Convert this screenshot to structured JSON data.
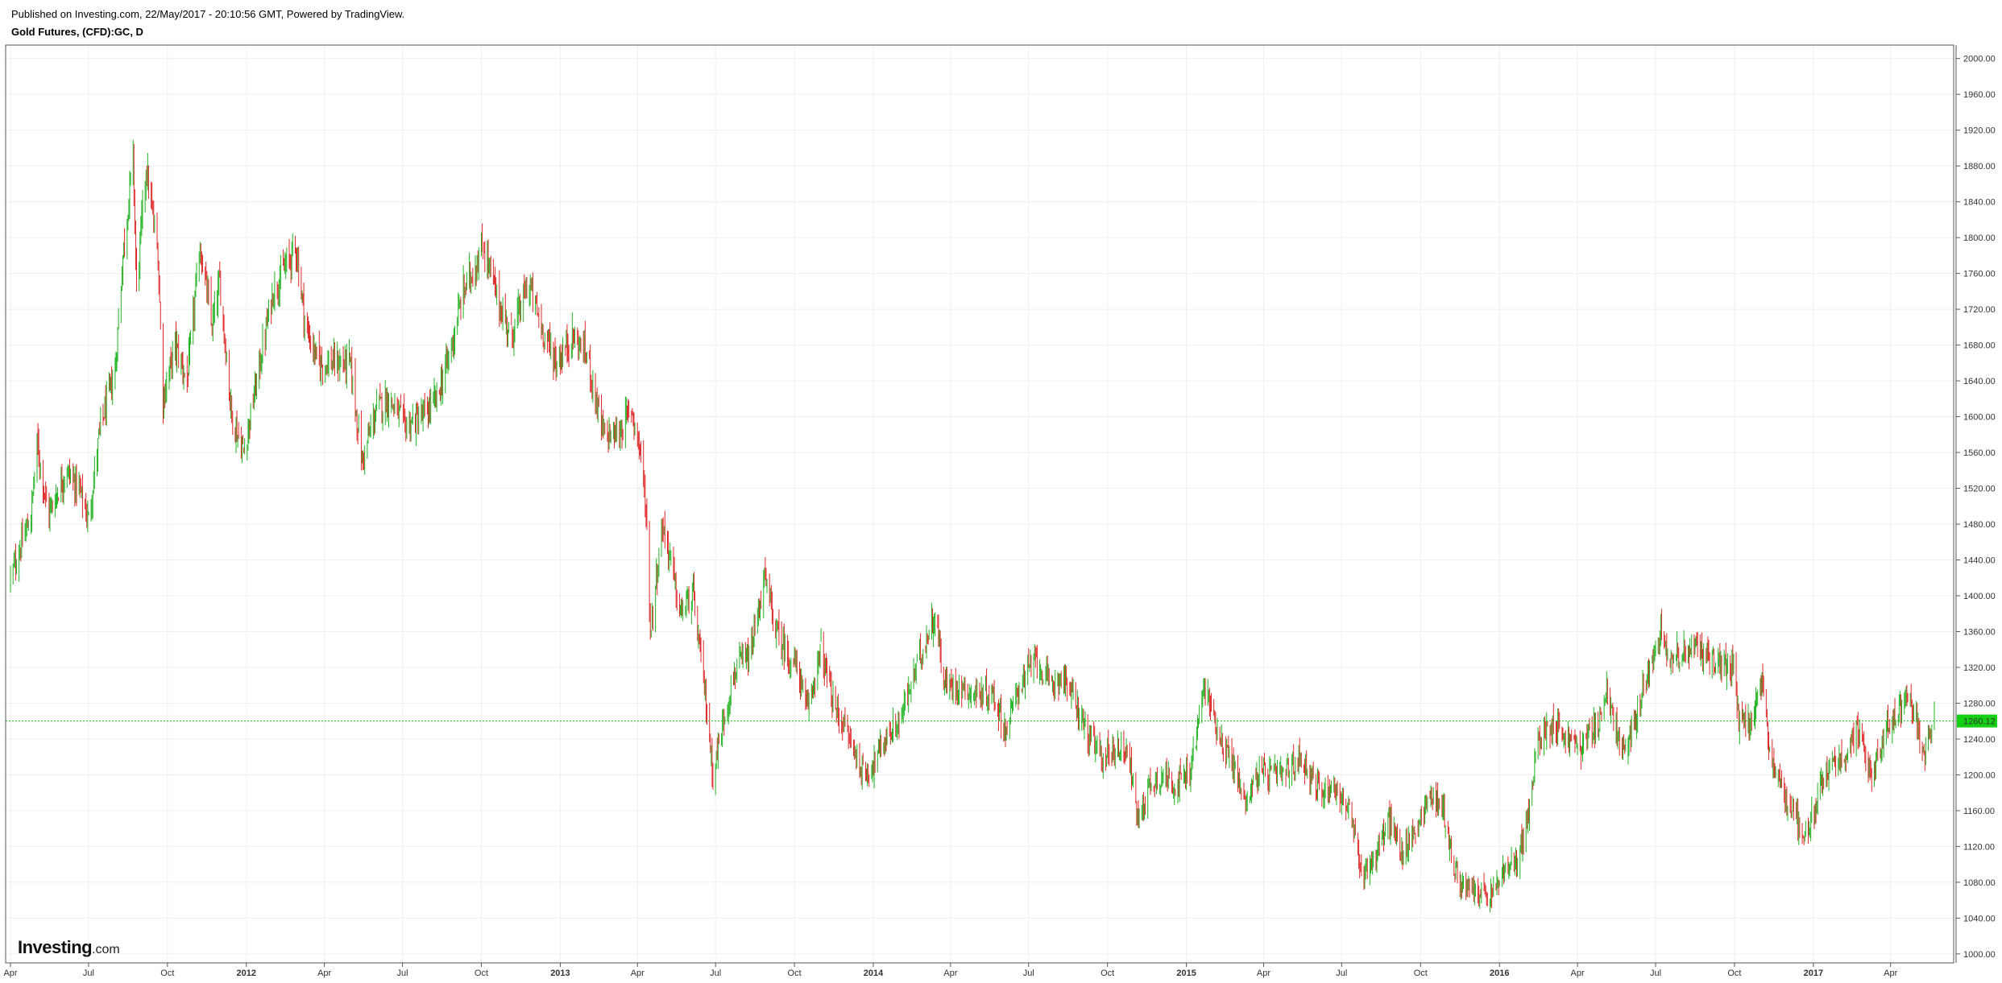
{
  "header": {
    "published": "Published on Investing.com, 22/May/2017 - 20:10:56 GMT, Powered by TradingView.",
    "symbol_title": "Gold Futures, (CFD):GC, D"
  },
  "logo": {
    "brand": "Investing",
    "suffix": ".com"
  },
  "colors": {
    "up": "#22b322",
    "down": "#e02727",
    "last_price_bg": "#13d013",
    "grid": "#efefef",
    "last_price_line": "#13c013"
  },
  "chart_data": {
    "type": "candlestick",
    "title": "Gold Futures, (CFD):GC, D",
    "ylim": [
      990,
      2015
    ],
    "y_ticks": [
      "1000.00",
      "1040.00",
      "1080.00",
      "1120.00",
      "1160.00",
      "1200.00",
      "1240.00",
      "1280.00",
      "1320.00",
      "1360.00",
      "1400.00",
      "1440.00",
      "1480.00",
      "1520.00",
      "1560.00",
      "1600.00",
      "1640.00",
      "1680.00",
      "1720.00",
      "1760.00",
      "1800.00",
      "1840.00",
      "1880.00",
      "1920.00",
      "1960.00",
      "2000.00"
    ],
    "x_range": [
      "2011-04-01",
      "2017-05-22"
    ],
    "x_ticks": [
      {
        "label": "Apr",
        "date": "2011-04-01",
        "bold": false
      },
      {
        "label": "Jul",
        "date": "2011-07-01",
        "bold": false
      },
      {
        "label": "Oct",
        "date": "2011-10-01",
        "bold": false
      },
      {
        "label": "2012",
        "date": "2012-01-01",
        "bold": true
      },
      {
        "label": "Apr",
        "date": "2012-04-01",
        "bold": false
      },
      {
        "label": "Jul",
        "date": "2012-07-01",
        "bold": false
      },
      {
        "label": "Oct",
        "date": "2012-10-01",
        "bold": false
      },
      {
        "label": "2013",
        "date": "2013-01-01",
        "bold": true
      },
      {
        "label": "Apr",
        "date": "2013-04-01",
        "bold": false
      },
      {
        "label": "Jul",
        "date": "2013-07-01",
        "bold": false
      },
      {
        "label": "Oct",
        "date": "2013-10-01",
        "bold": false
      },
      {
        "label": "2014",
        "date": "2014-01-01",
        "bold": true
      },
      {
        "label": "Apr",
        "date": "2014-04-01",
        "bold": false
      },
      {
        "label": "Jul",
        "date": "2014-07-01",
        "bold": false
      },
      {
        "label": "Oct",
        "date": "2014-10-01",
        "bold": false
      },
      {
        "label": "2015",
        "date": "2015-01-01",
        "bold": true
      },
      {
        "label": "Apr",
        "date": "2015-04-01",
        "bold": false
      },
      {
        "label": "Jul",
        "date": "2015-07-01",
        "bold": false
      },
      {
        "label": "Oct",
        "date": "2015-10-01",
        "bold": false
      },
      {
        "label": "2016",
        "date": "2016-01-01",
        "bold": true
      },
      {
        "label": "Apr",
        "date": "2016-04-01",
        "bold": false
      },
      {
        "label": "Jul",
        "date": "2016-07-01",
        "bold": false
      },
      {
        "label": "Oct",
        "date": "2016-10-01",
        "bold": false
      },
      {
        "label": "2017",
        "date": "2017-01-01",
        "bold": true
      },
      {
        "label": "Apr",
        "date": "2017-04-01",
        "bold": false
      }
    ],
    "last_price": 1260.12,
    "last_price_label": "1260.12",
    "close_path": [
      [
        "2011-04-01",
        1420
      ],
      [
        "2011-04-25",
        1490
      ],
      [
        "2011-05-02",
        1570
      ],
      [
        "2011-05-15",
        1490
      ],
      [
        "2011-06-05",
        1540
      ],
      [
        "2011-06-20",
        1520
      ],
      [
        "2011-07-01",
        1485
      ],
      [
        "2011-07-15",
        1590
      ],
      [
        "2011-08-01",
        1650
      ],
      [
        "2011-08-10",
        1780
      ],
      [
        "2011-08-22",
        1890
      ],
      [
        "2011-08-26",
        1740
      ],
      [
        "2011-09-06",
        1880
      ],
      [
        "2011-09-20",
        1780
      ],
      [
        "2011-09-26",
        1620
      ],
      [
        "2011-10-10",
        1680
      ],
      [
        "2011-10-24",
        1640
      ],
      [
        "2011-11-08",
        1790
      ],
      [
        "2011-11-22",
        1700
      ],
      [
        "2011-12-01",
        1750
      ],
      [
        "2011-12-15",
        1600
      ],
      [
        "2011-12-29",
        1560
      ],
      [
        "2012-01-15",
        1650
      ],
      [
        "2012-02-01",
        1740
      ],
      [
        "2012-02-28",
        1790
      ],
      [
        "2012-03-10",
        1700
      ],
      [
        "2012-03-25",
        1660
      ],
      [
        "2012-04-10",
        1660
      ],
      [
        "2012-05-01",
        1660
      ],
      [
        "2012-05-15",
        1550
      ],
      [
        "2012-06-01",
        1610
      ],
      [
        "2012-06-15",
        1620
      ],
      [
        "2012-07-05",
        1590
      ],
      [
        "2012-07-25",
        1600
      ],
      [
        "2012-08-10",
        1620
      ],
      [
        "2012-08-25",
        1670
      ],
      [
        "2012-09-10",
        1740
      ],
      [
        "2012-10-04",
        1790
      ],
      [
        "2012-10-20",
        1730
      ],
      [
        "2012-11-05",
        1690
      ],
      [
        "2012-11-25",
        1750
      ],
      [
        "2012-12-10",
        1700
      ],
      [
        "2012-12-28",
        1660
      ],
      [
        "2013-01-15",
        1690
      ],
      [
        "2013-02-01",
        1670
      ],
      [
        "2013-02-20",
        1580
      ],
      [
        "2013-03-10",
        1580
      ],
      [
        "2013-03-25",
        1610
      ],
      [
        "2013-04-05",
        1560
      ],
      [
        "2013-04-12",
        1480
      ],
      [
        "2013-04-16",
        1360
      ],
      [
        "2013-04-30",
        1480
      ],
      [
        "2013-05-10",
        1440
      ],
      [
        "2013-05-20",
        1380
      ],
      [
        "2013-06-05",
        1400
      ],
      [
        "2013-06-20",
        1280
      ],
      [
        "2013-06-28",
        1200
      ],
      [
        "2013-07-10",
        1260
      ],
      [
        "2013-07-25",
        1320
      ],
      [
        "2013-08-10",
        1330
      ],
      [
        "2013-08-27",
        1420
      ],
      [
        "2013-09-10",
        1360
      ],
      [
        "2013-09-25",
        1330
      ],
      [
        "2013-10-05",
        1320
      ],
      [
        "2013-10-15",
        1270
      ],
      [
        "2013-11-01",
        1340
      ],
      [
        "2013-11-15",
        1280
      ],
      [
        "2013-12-05",
        1240
      ],
      [
        "2013-12-20",
        1200
      ],
      [
        "2013-12-31",
        1210
      ],
      [
        "2014-01-15",
        1240
      ],
      [
        "2014-02-01",
        1260
      ],
      [
        "2014-02-20",
        1320
      ],
      [
        "2014-03-14",
        1380
      ],
      [
        "2014-03-25",
        1300
      ],
      [
        "2014-04-10",
        1300
      ],
      [
        "2014-05-01",
        1290
      ],
      [
        "2014-05-20",
        1290
      ],
      [
        "2014-06-05",
        1250
      ],
      [
        "2014-06-20",
        1300
      ],
      [
        "2014-07-10",
        1330
      ],
      [
        "2014-07-25",
        1300
      ],
      [
        "2014-08-10",
        1310
      ],
      [
        "2014-08-25",
        1280
      ],
      [
        "2014-09-10",
        1240
      ],
      [
        "2014-09-25",
        1220
      ],
      [
        "2014-10-10",
        1230
      ],
      [
        "2014-10-25",
        1230
      ],
      [
        "2014-11-05",
        1150
      ],
      [
        "2014-11-20",
        1190
      ],
      [
        "2014-12-05",
        1200
      ],
      [
        "2014-12-20",
        1190
      ],
      [
        "2015-01-05",
        1200
      ],
      [
        "2015-01-22",
        1300
      ],
      [
        "2015-02-10",
        1240
      ],
      [
        "2015-02-25",
        1210
      ],
      [
        "2015-03-10",
        1170
      ],
      [
        "2015-03-25",
        1200
      ],
      [
        "2015-04-10",
        1200
      ],
      [
        "2015-04-25",
        1200
      ],
      [
        "2015-05-15",
        1220
      ],
      [
        "2015-06-05",
        1180
      ],
      [
        "2015-06-20",
        1190
      ],
      [
        "2015-07-10",
        1160
      ],
      [
        "2015-07-24",
        1090
      ],
      [
        "2015-08-10",
        1110
      ],
      [
        "2015-08-25",
        1150
      ],
      [
        "2015-09-10",
        1110
      ],
      [
        "2015-09-25",
        1140
      ],
      [
        "2015-10-14",
        1180
      ],
      [
        "2015-10-28",
        1160
      ],
      [
        "2015-11-10",
        1090
      ],
      [
        "2015-11-25",
        1070
      ],
      [
        "2015-12-10",
        1070
      ],
      [
        "2015-12-20",
        1060
      ],
      [
        "2016-01-05",
        1090
      ],
      [
        "2016-01-20",
        1100
      ],
      [
        "2016-02-05",
        1160
      ],
      [
        "2016-02-15",
        1240
      ],
      [
        "2016-03-05",
        1260
      ],
      [
        "2016-03-20",
        1240
      ],
      [
        "2016-04-05",
        1230
      ],
      [
        "2016-04-25",
        1260
      ],
      [
        "2016-05-05",
        1290
      ],
      [
        "2016-05-25",
        1220
      ],
      [
        "2016-06-10",
        1270
      ],
      [
        "2016-06-24",
        1320
      ],
      [
        "2016-07-06",
        1365
      ],
      [
        "2016-07-20",
        1330
      ],
      [
        "2016-08-05",
        1340
      ],
      [
        "2016-08-20",
        1340
      ],
      [
        "2016-09-05",
        1330
      ],
      [
        "2016-09-20",
        1320
      ],
      [
        "2016-09-30",
        1320
      ],
      [
        "2016-10-06",
        1260
      ],
      [
        "2016-10-20",
        1260
      ],
      [
        "2016-11-02",
        1300
      ],
      [
        "2016-11-10",
        1230
      ],
      [
        "2016-11-25",
        1180
      ],
      [
        "2016-12-10",
        1160
      ],
      [
        "2016-12-20",
        1130
      ],
      [
        "2017-01-05",
        1170
      ],
      [
        "2017-01-20",
        1210
      ],
      [
        "2017-02-05",
        1220
      ],
      [
        "2017-02-20",
        1250
      ],
      [
        "2017-03-10",
        1200
      ],
      [
        "2017-03-25",
        1250
      ],
      [
        "2017-04-05",
        1260
      ],
      [
        "2017-04-18",
        1290
      ],
      [
        "2017-05-01",
        1260
      ],
      [
        "2017-05-09",
        1220
      ],
      [
        "2017-05-22",
        1260
      ]
    ]
  }
}
